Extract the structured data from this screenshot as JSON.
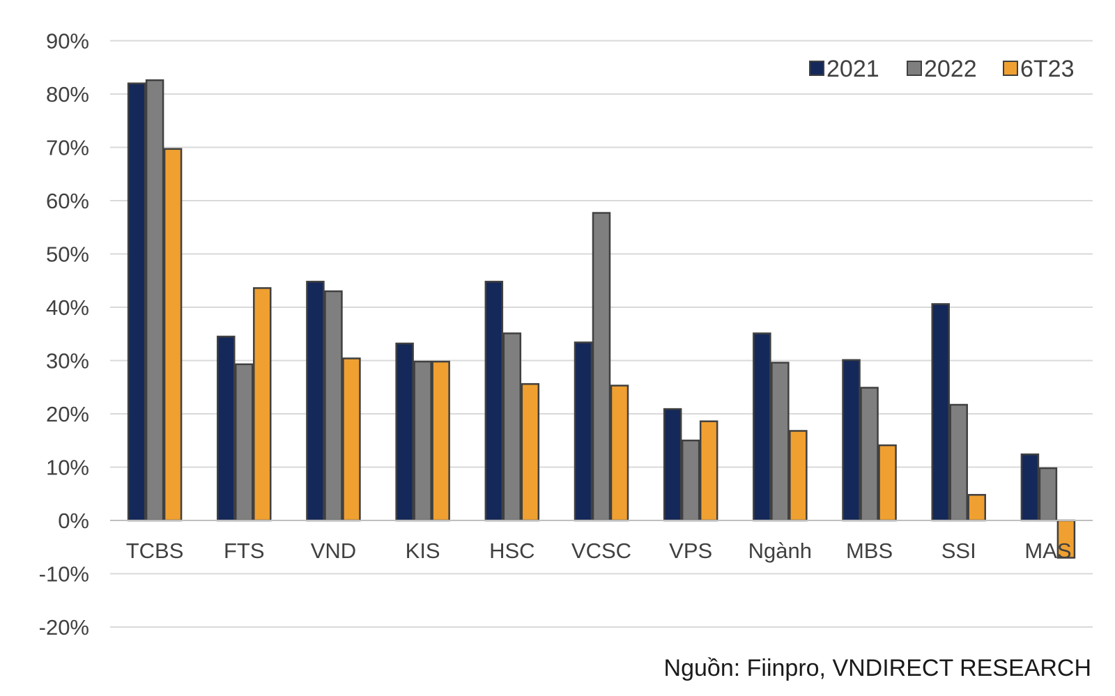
{
  "chart_data": {
    "type": "bar",
    "title": "",
    "xlabel": "",
    "ylabel": "",
    "ylim": [
      -0.2,
      0.9
    ],
    "yticks": [
      "90%",
      "80%",
      "70%",
      "60%",
      "50%",
      "40%",
      "30%",
      "20%",
      "10%",
      "0%",
      "-10%",
      "-20%"
    ],
    "categories": [
      "TCBS",
      "FTS",
      "VND",
      "KIS",
      "HSC",
      "VCSC",
      "VPS",
      "Ngành",
      "MBS",
      "SSI",
      "MAS"
    ],
    "series": [
      {
        "name": "2021",
        "color": "#14285a",
        "values": [
          0.82,
          0.345,
          0.448,
          0.332,
          0.448,
          0.334,
          0.209,
          0.351,
          0.301,
          0.406,
          0.124
        ]
      },
      {
        "name": "2022",
        "color": "#7f7f7f",
        "values": [
          0.826,
          0.293,
          0.43,
          0.298,
          0.351,
          0.577,
          0.15,
          0.296,
          0.249,
          0.217,
          0.098
        ]
      },
      {
        "name": "6T23",
        "color": "#f0a030",
        "values": [
          0.697,
          0.436,
          0.304,
          0.298,
          0.256,
          0.253,
          0.186,
          0.168,
          0.141,
          0.048,
          -0.07
        ]
      }
    ],
    "grid": true,
    "legend": "top-right"
  },
  "source_note": "Nguồn: Fiinpro, VNDIRECT RESEARCH"
}
